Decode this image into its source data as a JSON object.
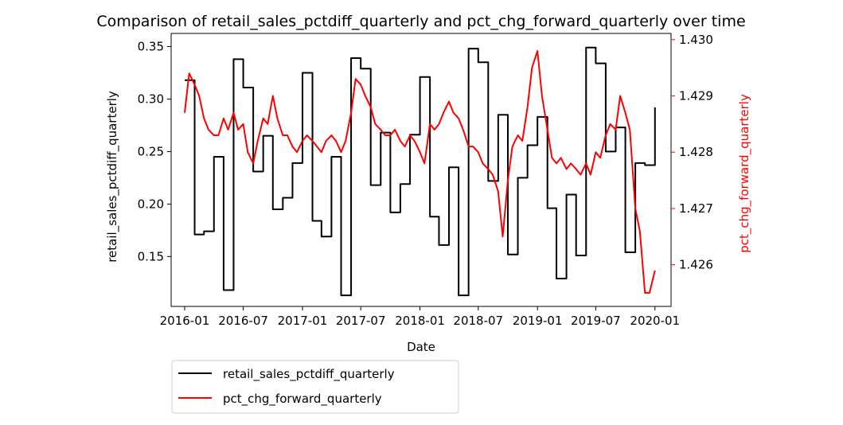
{
  "chart_data": {
    "type": "line",
    "title": "Comparison of retail_sales_pctdiff_quarterly and pct_chg_forward_quarterly over time",
    "xlabel": "Date",
    "ylabel_left": "retail_sales_pctdiff_quarterly",
    "ylabel_right": "pct_chg_forward_quarterly",
    "x_ticks": [
      "2016-01",
      "2016-07",
      "2017-01",
      "2017-07",
      "2018-01",
      "2018-07",
      "2019-01",
      "2019-07",
      "2020-01"
    ],
    "y_left_ticks": [
      "0.15",
      "0.20",
      "0.25",
      "0.30",
      "0.35"
    ],
    "y_right_ticks": [
      "1.426",
      "1.427",
      "1.428",
      "1.429",
      "1.430"
    ],
    "y_left_lim": [
      0.1025,
      0.3625
    ],
    "y_right_lim": [
      1.42526,
      1.43011
    ],
    "x_range": [
      "2015-11-20",
      "2020-02-20"
    ],
    "grid": false,
    "legend_position": "below the plot, left",
    "colors": {
      "left_series": "#000000",
      "right_series": "#ff0000",
      "right_axis": "#ff0000"
    },
    "series": [
      {
        "name": "retail_sales_pctdiff_quarterly",
        "axis": "left",
        "color": "#000000",
        "step": true,
        "x": [
          "2016-01-01",
          "2016-01-15",
          "2016-02-01",
          "2016-03-01",
          "2016-04-01",
          "2016-05-01",
          "2016-06-01",
          "2016-07-01",
          "2016-08-01",
          "2016-09-01",
          "2016-10-01",
          "2016-11-01",
          "2016-12-01",
          "2017-01-01",
          "2017-02-01",
          "2017-03-01",
          "2017-04-01",
          "2017-05-01",
          "2017-06-01",
          "2017-07-01",
          "2017-08-01",
          "2017-09-01",
          "2017-10-01",
          "2017-11-01",
          "2017-12-01",
          "2018-01-01",
          "2018-02-01",
          "2018-03-01",
          "2018-04-01",
          "2018-05-01",
          "2018-06-01",
          "2018-07-01",
          "2018-08-01",
          "2018-09-01",
          "2018-10-01",
          "2018-11-01",
          "2018-12-01",
          "2019-01-01",
          "2019-02-01",
          "2019-03-01",
          "2019-04-01",
          "2019-05-01",
          "2019-06-01",
          "2019-07-01",
          "2019-08-01",
          "2019-09-01",
          "2019-10-01",
          "2019-11-01",
          "2019-12-01",
          "2020-01-01"
        ],
        "y": [
          0.318,
          0.318,
          0.171,
          0.174,
          0.245,
          0.118,
          0.338,
          0.311,
          0.231,
          0.265,
          0.195,
          0.206,
          0.239,
          0.325,
          0.184,
          0.169,
          0.245,
          0.113,
          0.339,
          0.329,
          0.218,
          0.268,
          0.192,
          0.219,
          0.266,
          0.321,
          0.188,
          0.161,
          0.235,
          0.113,
          0.348,
          0.335,
          0.222,
          0.285,
          0.152,
          0.225,
          0.256,
          0.283,
          0.196,
          0.129,
          0.209,
          0.151,
          0.349,
          0.334,
          0.25,
          0.273,
          0.154,
          0.239,
          0.237,
          0.292
        ]
      },
      {
        "name": "pct_chg_forward_quarterly",
        "axis": "right",
        "color": "#ff0000",
        "step": false,
        "x": [
          "2016-01-01",
          "2016-01-15",
          "2016-02-01",
          "2016-02-15",
          "2016-03-01",
          "2016-03-15",
          "2016-04-01",
          "2016-04-15",
          "2016-05-01",
          "2016-05-15",
          "2016-06-01",
          "2016-06-15",
          "2016-07-01",
          "2016-07-15",
          "2016-08-01",
          "2016-08-15",
          "2016-09-01",
          "2016-09-15",
          "2016-10-01",
          "2016-10-15",
          "2016-11-01",
          "2016-11-15",
          "2016-12-01",
          "2016-12-15",
          "2017-01-01",
          "2017-01-15",
          "2017-02-01",
          "2017-02-15",
          "2017-03-01",
          "2017-03-15",
          "2017-04-01",
          "2017-04-15",
          "2017-05-01",
          "2017-05-15",
          "2017-06-01",
          "2017-06-15",
          "2017-07-01",
          "2017-07-15",
          "2017-08-01",
          "2017-08-15",
          "2017-09-01",
          "2017-09-15",
          "2017-10-01",
          "2017-10-15",
          "2017-11-01",
          "2017-11-15",
          "2017-12-01",
          "2017-12-15",
          "2018-01-01",
          "2018-01-15",
          "2018-02-01",
          "2018-02-15",
          "2018-03-01",
          "2018-03-15",
          "2018-04-01",
          "2018-04-15",
          "2018-05-01",
          "2018-05-15",
          "2018-06-01",
          "2018-06-15",
          "2018-07-01",
          "2018-07-15",
          "2018-08-01",
          "2018-08-15",
          "2018-09-01",
          "2018-09-15",
          "2018-10-01",
          "2018-10-15",
          "2018-11-01",
          "2018-11-15",
          "2018-12-01",
          "2018-12-15",
          "2019-01-01",
          "2019-01-15",
          "2019-02-01",
          "2019-02-15",
          "2019-03-01",
          "2019-03-15",
          "2019-04-01",
          "2019-04-15",
          "2019-05-01",
          "2019-05-15",
          "2019-06-01",
          "2019-06-15",
          "2019-07-01",
          "2019-07-15",
          "2019-08-01",
          "2019-08-15",
          "2019-09-01",
          "2019-09-15",
          "2019-10-01",
          "2019-10-15",
          "2019-11-01",
          "2019-11-15",
          "2019-12-01",
          "2019-12-15",
          "2020-01-01"
        ],
        "y": [
          1.4287,
          1.4294,
          1.4292,
          1.429,
          1.4286,
          1.4284,
          1.4283,
          1.4283,
          1.4286,
          1.4284,
          1.4287,
          1.4284,
          1.4285,
          1.428,
          1.4278,
          1.4282,
          1.4286,
          1.4285,
          1.429,
          1.4286,
          1.4283,
          1.4283,
          1.4281,
          1.428,
          1.4282,
          1.4283,
          1.4282,
          1.4281,
          1.428,
          1.4282,
          1.4283,
          1.4282,
          1.428,
          1.4282,
          1.4287,
          1.4293,
          1.4292,
          1.429,
          1.4288,
          1.4285,
          1.4284,
          1.4283,
          1.4283,
          1.4284,
          1.4282,
          1.4281,
          1.4283,
          1.4282,
          1.428,
          1.4278,
          1.4285,
          1.4284,
          1.4285,
          1.4287,
          1.4289,
          1.4287,
          1.4286,
          1.4284,
          1.4281,
          1.4281,
          1.428,
          1.4278,
          1.4277,
          1.4276,
          1.4273,
          1.4265,
          1.4275,
          1.4281,
          1.4283,
          1.4282,
          1.4288,
          1.4295,
          1.4298,
          1.429,
          1.4284,
          1.4279,
          1.4278,
          1.4279,
          1.4277,
          1.4278,
          1.4277,
          1.4276,
          1.4278,
          1.4276,
          1.428,
          1.4279,
          1.4283,
          1.4285,
          1.4284,
          1.429,
          1.4287,
          1.4284,
          1.427,
          1.4266,
          1.4255,
          1.4255,
          1.4259
        ]
      }
    ]
  }
}
